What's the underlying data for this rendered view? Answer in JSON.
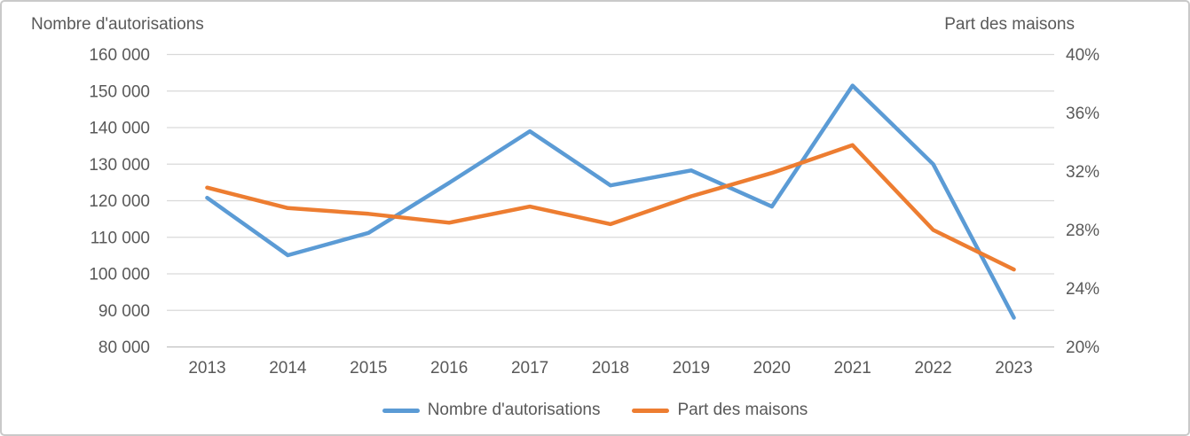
{
  "chart_data": {
    "type": "line",
    "categories": [
      "2013",
      "2014",
      "2015",
      "2016",
      "2017",
      "2018",
      "2019",
      "2020",
      "2021",
      "2022",
      "2023"
    ],
    "series": [
      {
        "name": "Nombre d'autorisations",
        "axis": "left",
        "color": "#5B9BD5",
        "values": [
          120800,
          105100,
          111200,
          124900,
          139000,
          124200,
          128300,
          118400,
          151500,
          130000,
          88000
        ]
      },
      {
        "name": "Part des maisons",
        "axis": "right",
        "color": "#ED7D31",
        "values": [
          30.9,
          29.5,
          29.1,
          28.5,
          29.6,
          28.4,
          30.3,
          31.9,
          33.8,
          28.0,
          25.3
        ]
      }
    ],
    "left_axis": {
      "title": "Nombre d'autorisations",
      "min": 80000,
      "max": 160000,
      "step": 10000,
      "ticks": [
        "160 000",
        "150 000",
        "140 000",
        "130 000",
        "120 000",
        "110 000",
        "100 000",
        "90 000",
        "80 000"
      ]
    },
    "right_axis": {
      "title": "Part des maisons",
      "min": 20,
      "max": 40,
      "step": 4,
      "ticks": [
        "40%",
        "36%",
        "32%",
        "28%",
        "24%",
        "20%"
      ]
    },
    "grid": "horizontal",
    "legend_position": "bottom",
    "colors": {
      "grid": "#D9D9D9",
      "axis_line": "#BFBFBF",
      "text": "#595959",
      "border": "#C9C9C9",
      "background": "#FFFFFF"
    }
  },
  "legend": {
    "items": [
      {
        "label": "Nombre d'autorisations",
        "color": "#5B9BD5"
      },
      {
        "label": "Part des maisons",
        "color": "#ED7D31"
      }
    ]
  }
}
